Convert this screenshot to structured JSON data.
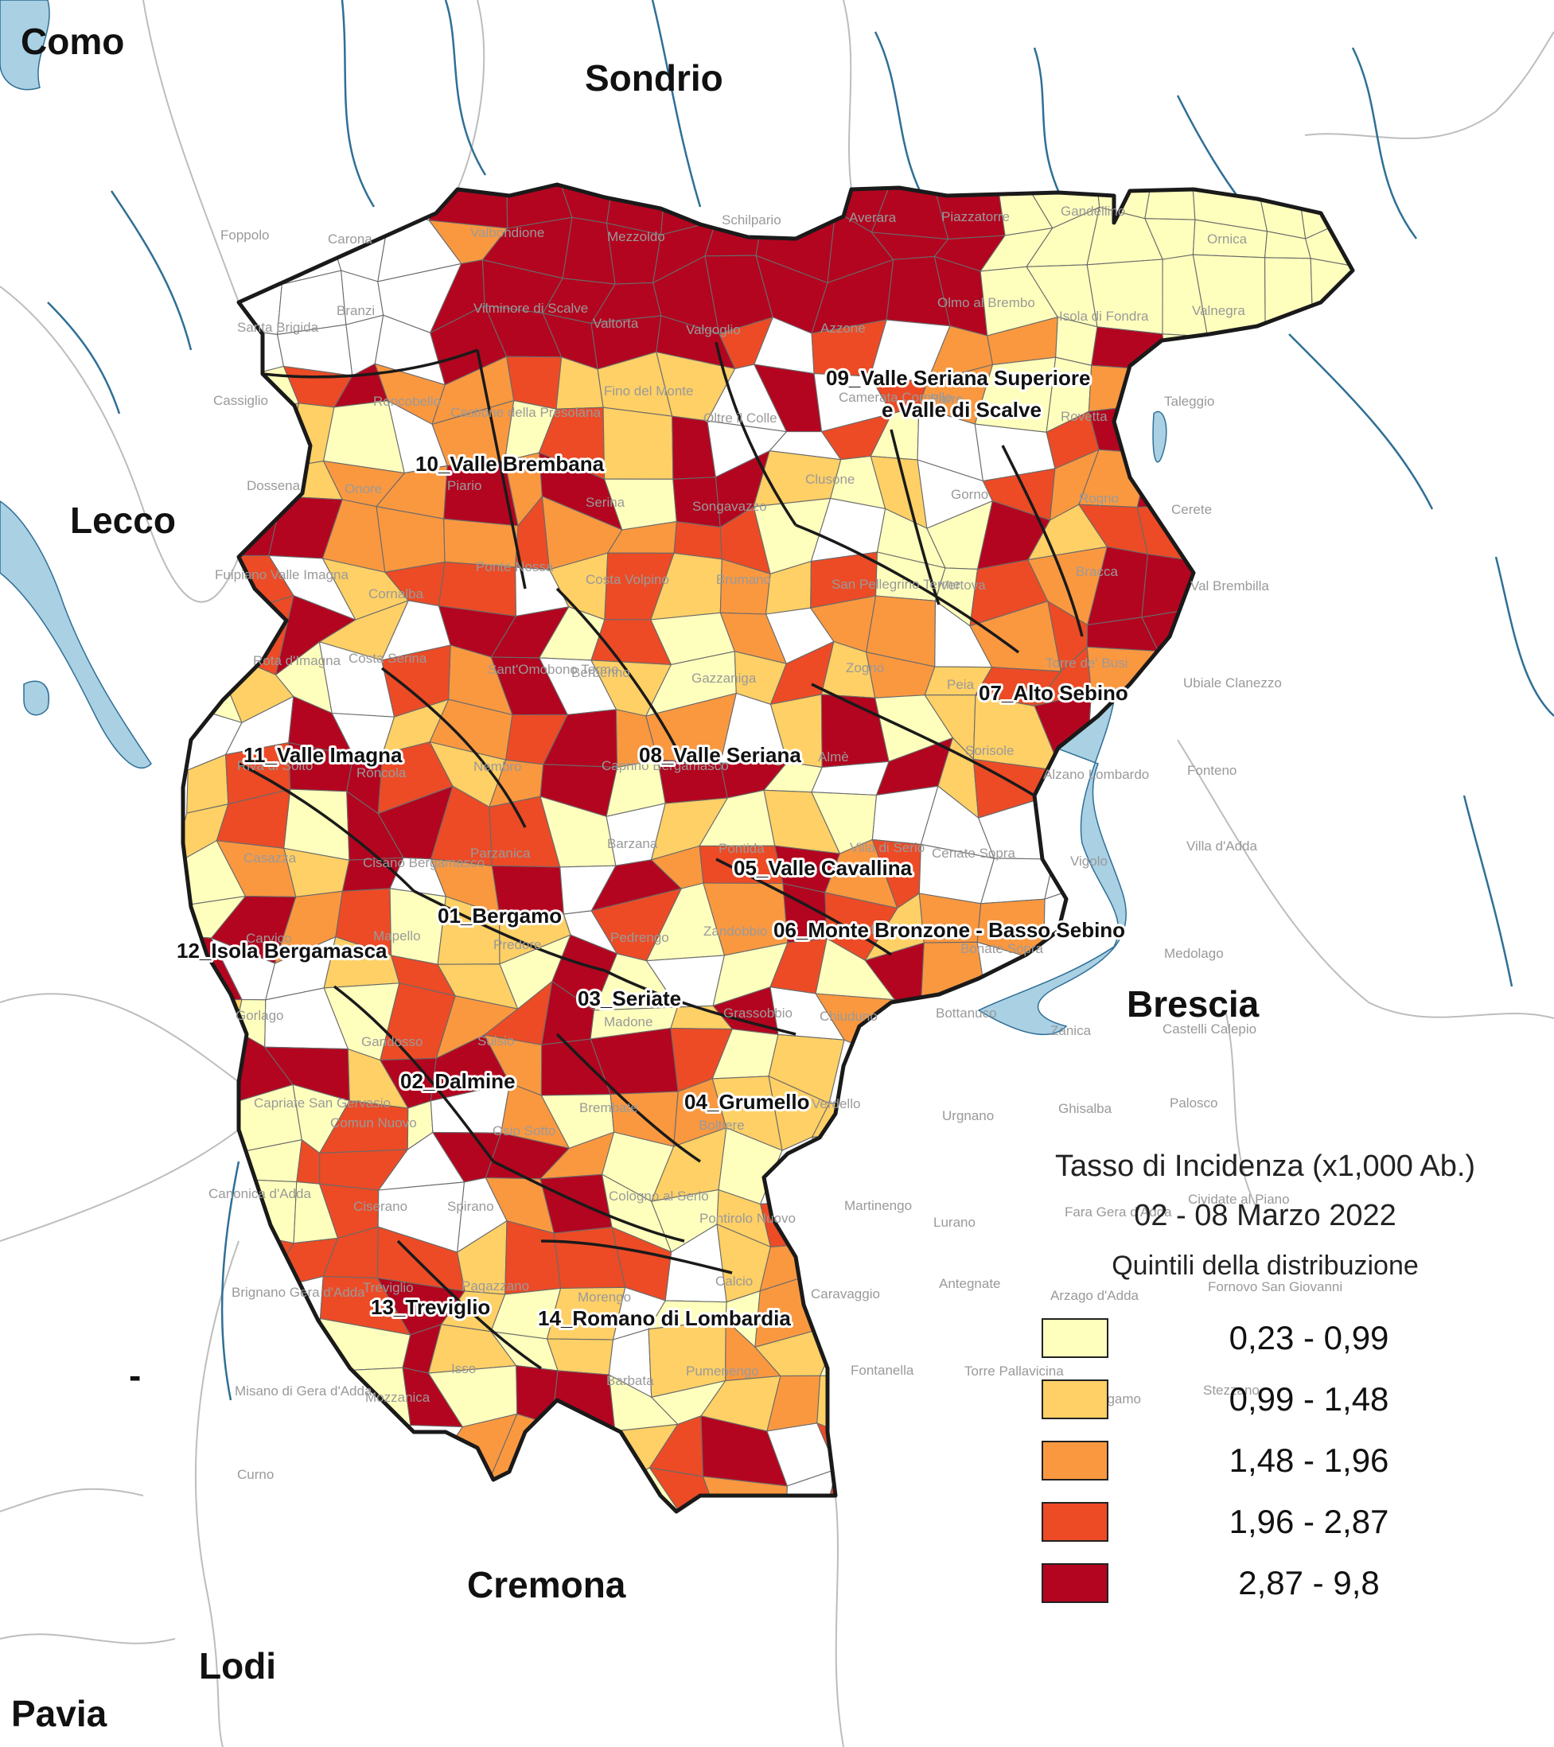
{
  "colors": {
    "water": "#a9d0e3",
    "river": "#2f6f96",
    "boundary": "#1a1a1a",
    "background_boundary": "#bdbdbd"
  },
  "neighbours": [
    {
      "id": "como",
      "label": "Como"
    },
    {
      "id": "sondrio",
      "label": "Sondrio"
    },
    {
      "id": "lecco",
      "label": "Lecco"
    },
    {
      "id": "brescia",
      "label": "Brescia"
    },
    {
      "id": "cremona",
      "label": "Cremona"
    },
    {
      "id": "lodi",
      "label": "Lodi"
    },
    {
      "id": "pavia",
      "label": "Pavia"
    },
    {
      "id": "dash",
      "label": "-"
    }
  ],
  "districts": [
    {
      "id": "d01",
      "label": "01_Bergamo"
    },
    {
      "id": "d02",
      "label": "02_Dalmine"
    },
    {
      "id": "d03",
      "label": "03_Seriate"
    },
    {
      "id": "d04",
      "label": "04_Grumello"
    },
    {
      "id": "d05",
      "label": "05_Valle Cavallina"
    },
    {
      "id": "d06",
      "label": "06_Monte Bronzone - Basso Sebino"
    },
    {
      "id": "d07",
      "label": "07_Alto Sebino"
    },
    {
      "id": "d08",
      "label": "08_Valle Seriana"
    },
    {
      "id": "d09a",
      "label": "09_Valle Seriana Superiore"
    },
    {
      "id": "d09b",
      "label": "e Valle di Scalve"
    },
    {
      "id": "d10",
      "label": "10_Valle Brembana"
    },
    {
      "id": "d11",
      "label": "11_Valle Imagna"
    },
    {
      "id": "d12",
      "label": "12_Isola Bergamasca"
    },
    {
      "id": "d13",
      "label": "13_Treviglio"
    },
    {
      "id": "d14",
      "label": "14_Romano di Lombardia"
    }
  ],
  "municipalities": [
    "Foppolo",
    "Carona",
    "Valbondione",
    "Mezzoldo",
    "Schilpario",
    "Averara",
    "Piazzatorre",
    "Gandellino",
    "Ornica",
    "Santa Brigida",
    "Branzi",
    "Vilminore di Scalve",
    "Valtorta",
    "Valgoglio",
    "Azzone",
    "Olmo al Brembo",
    "Isola di Fondra",
    "Valnegra",
    "Cassiglio",
    "Roncobello",
    "Castione della Presolana",
    "Fino del Monte",
    "Oltre il Colle",
    "Camerata Cornello",
    "Parre",
    "Rovetta",
    "Taleggio",
    "Dossena",
    "Onore",
    "Piario",
    "Serina",
    "Songavazzo",
    "Clusone",
    "Gorno",
    "Rogno",
    "Cerete",
    "Fuipiano Valle Imagna",
    "Cornalba",
    "Ponte Nossa",
    "Costa Volpino",
    "Brumano",
    "San Pellegrino Terme",
    "Vertova",
    "Bracca",
    "Val Brembilla",
    "Rota d'Imagna",
    "Costa Serina",
    "Sant'Omobono Terme",
    "Berbenno",
    "Gazzaniga",
    "Zogno",
    "Peia",
    "Torre de' Busi",
    "Ubiale Clanezzo",
    "Riva di Solto",
    "Roncola",
    "Nembro",
    "Caprino Bergamasco",
    "Palazzago",
    "Almè",
    "Sorisole",
    "Alzano Lombardo",
    "Fonteno",
    "Casazza",
    "Cisano Bergamasco",
    "Parzanica",
    "Barzana",
    "Pontida",
    "Villa di Serio",
    "Cenate Sopra",
    "Vigolo",
    "Villa d'Adda",
    "Carvico",
    "Mapello",
    "Predore",
    "Pedrengo",
    "Zandobbio",
    "Calusco d'Adda",
    "Bonate Sopra",
    "Trescore",
    "Medolago",
    "Gorlago",
    "Gandosso",
    "Suisio",
    "Madone",
    "Grassobbio",
    "Chiuduno",
    "Bottanuco",
    "Zanica",
    "Castelli Calepio",
    "Capriate San Gervasio",
    "Comun Nuovo",
    "Osio Sotto",
    "Brembate",
    "Boltiere",
    "Verdello",
    "Urgnano",
    "Ghisalba",
    "Palosco",
    "Canonica d'Adda",
    "Ciserano",
    "Spirano",
    "Cologno al Serio",
    "Pontirolo Nuovo",
    "Martinengo",
    "Lurano",
    "Fara Gera d'Adda",
    "Cividate al Piano",
    "Brignano Gera d'Adda",
    "Treviglio",
    "Pagazzano",
    "Morengo",
    "Calcio",
    "Caravaggio",
    "Antegnate",
    "Arzago d'Adda",
    "Fornovo San Giovanni",
    "Misano di Gera d'Adda",
    "Mozzanica",
    "Isso",
    "Barbata",
    "Pumenengo",
    "Fontanella",
    "Torre Pallavicina",
    "Bergamo",
    "Stezzano",
    "Curno"
  ],
  "legend": {
    "title": "Tasso di Incidenza (x1,000 Ab.)",
    "period": "02 - 08 Marzo 2022",
    "subtitle": "Quintili della distribuzione",
    "classes": [
      {
        "label": "0,23 - 0,99",
        "color": "#ffffbd"
      },
      {
        "label": "0,99 - 1,48",
        "color": "#fed065"
      },
      {
        "label": "1,48 - 1,96",
        "color": "#fa9840"
      },
      {
        "label": "1,96 - 2,87",
        "color": "#ec4b26"
      },
      {
        "label": "2,87 - 9,8",
        "color": "#b3051f"
      }
    ]
  }
}
